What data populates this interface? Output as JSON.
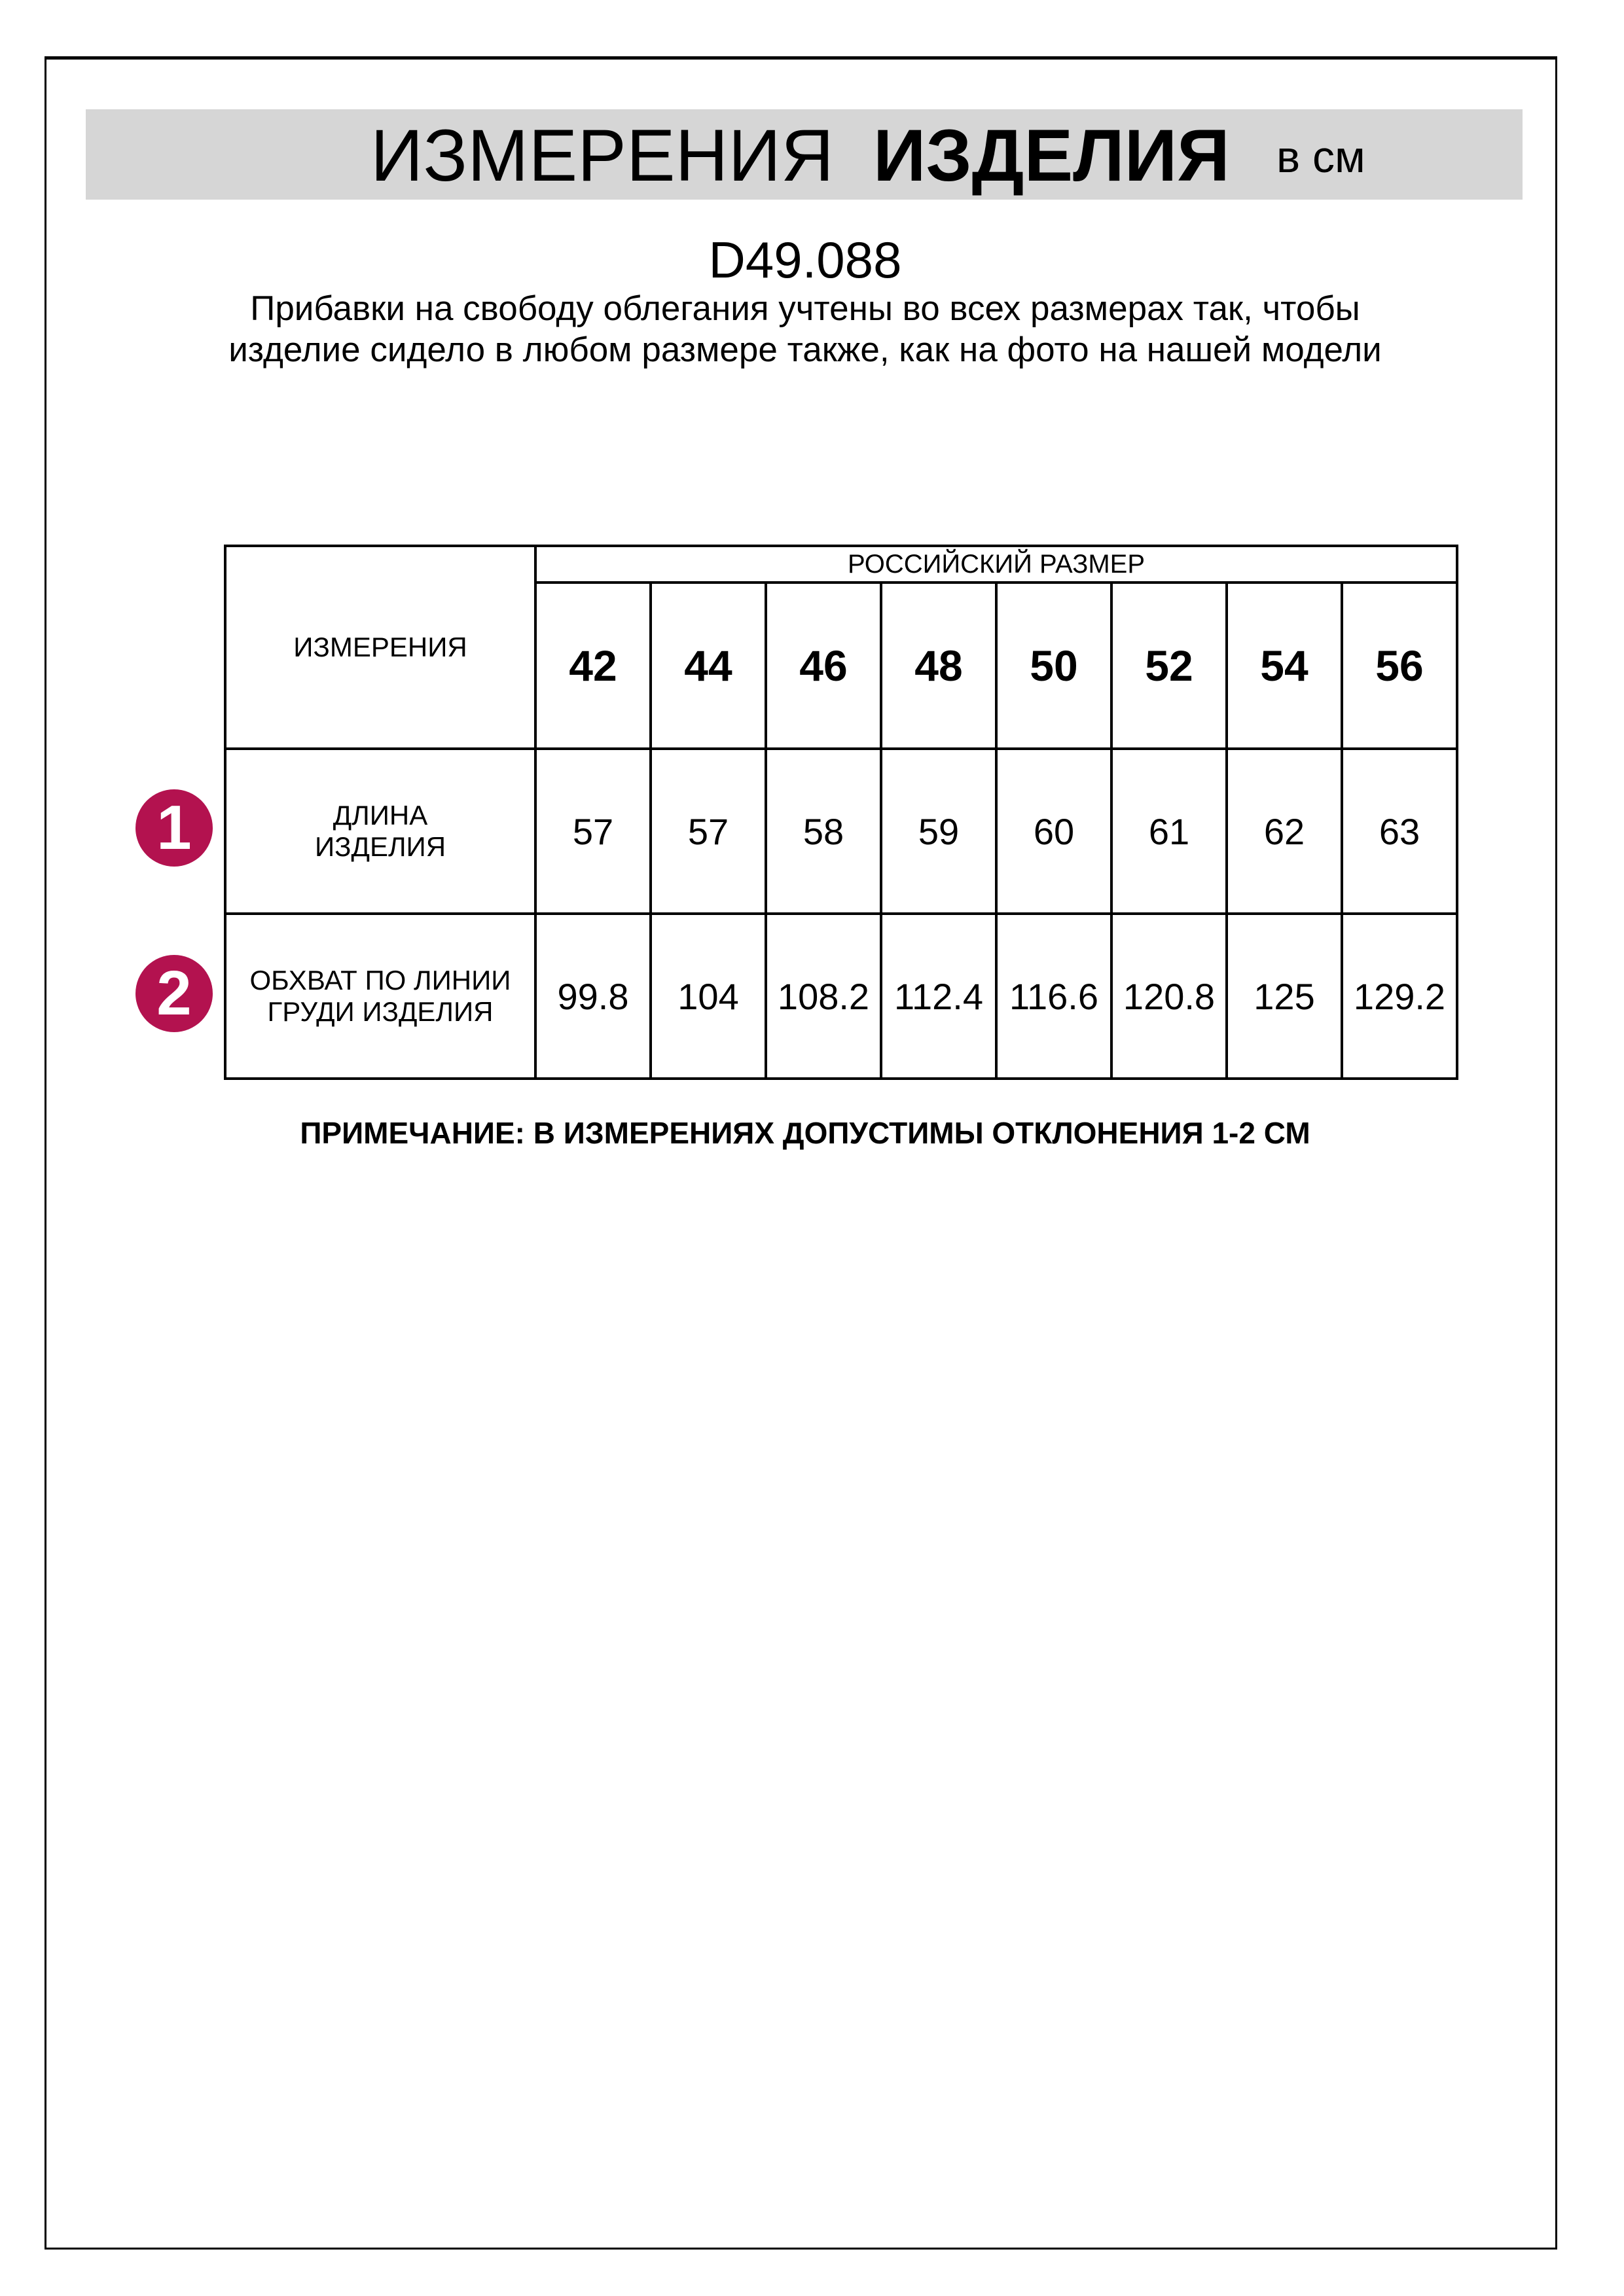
{
  "header": {
    "title_regular": "ИЗМЕРЕНИЯ",
    "title_bold": "ИЗДЕЛИЯ",
    "unit": "в см"
  },
  "product_code": "D49.088",
  "description": "Прибавки на свободу облегания учтены во всех размерах так, чтобы изделие сидело в любом размере также, как на фото на нашей модели",
  "table": {
    "measure_header": "ИЗМЕРЕНИЯ",
    "size_header": "РОССИЙСКИЙ РАЗМЕР",
    "sizes": [
      "42",
      "44",
      "46",
      "48",
      "50",
      "52",
      "54",
      "56"
    ],
    "rows": [
      {
        "badge": "1",
        "label": "ДЛИНА ИЗДЕЛИЯ",
        "values": [
          "57",
          "57",
          "58",
          "59",
          "60",
          "61",
          "62",
          "63"
        ]
      },
      {
        "badge": "2",
        "label": "ОБХВАТ ПО ЛИНИИ ГРУДИ ИЗДЕЛИЯ",
        "values": [
          "99.8",
          "104",
          "108.2",
          "112.4",
          "116.6",
          "120.8",
          "125",
          "129.2"
        ]
      }
    ]
  },
  "note": "ПРИМЕЧАНИЕ: В ИЗМЕРЕНИЯХ ДОПУСТИМЫ ОТКЛОНЕНИЯ 1-2 СМ",
  "colors": {
    "badge": "#b3124f",
    "band": "#d6d6d6"
  }
}
